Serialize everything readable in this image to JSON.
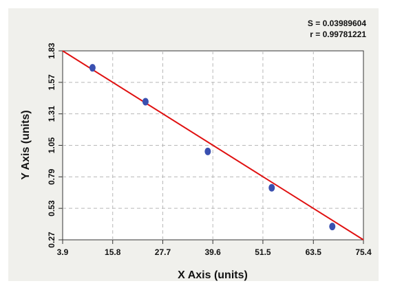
{
  "chart_data": {
    "type": "scatter",
    "title": "",
    "xlabel": "X Axis (units)",
    "ylabel": "Y Axis (units)",
    "xlim": [
      3.9,
      75.4
    ],
    "ylim": [
      0.27,
      1.83
    ],
    "x_ticks": [
      "3.9",
      "15.8",
      "27.7",
      "39.6",
      "51.5",
      "63.5",
      "75.4"
    ],
    "y_ticks": [
      "0.27",
      "0.53",
      "0.79",
      "1.05",
      "1.31",
      "1.57",
      "1.83"
    ],
    "grid": true,
    "stats": [
      "S = 0.03989604",
      "r = 0.99781221"
    ],
    "series": [
      {
        "kind": "points",
        "color": "#3a50b0",
        "x": [
          11.0,
          23.6,
          38.4,
          53.6,
          68.0
        ],
        "y": [
          1.69,
          1.41,
          1.0,
          0.7,
          0.38
        ]
      },
      {
        "kind": "fit-line",
        "color": "#e01010",
        "x": [
          3.9,
          75.4
        ],
        "y": [
          1.83,
          0.27
        ]
      }
    ]
  }
}
